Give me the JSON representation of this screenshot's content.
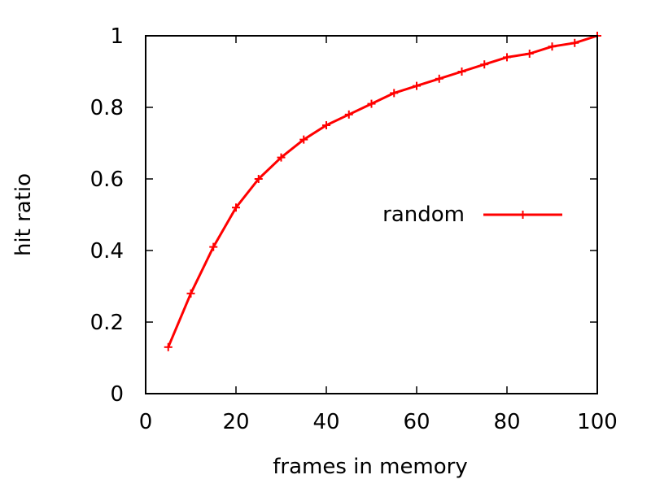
{
  "chart_data": {
    "type": "line",
    "title": "",
    "xlabel": "frames in memory",
    "ylabel": "hit ratio",
    "xlim": [
      0,
      100
    ],
    "ylim": [
      0,
      1
    ],
    "xticks": [
      "0",
      "20",
      "40",
      "60",
      "80",
      "100"
    ],
    "yticks": [
      "0",
      "0.2",
      "0.4",
      "0.6",
      "0.8",
      "1"
    ],
    "grid": false,
    "legend_position": "right",
    "series": [
      {
        "name": "random",
        "color": "#ff0000",
        "marker": "plus",
        "x": [
          5,
          10,
          15,
          20,
          25,
          30,
          35,
          40,
          45,
          50,
          55,
          60,
          65,
          70,
          75,
          80,
          85,
          90,
          95,
          100
        ],
        "y": [
          0.13,
          0.28,
          0.41,
          0.52,
          0.6,
          0.66,
          0.71,
          0.75,
          0.78,
          0.81,
          0.84,
          0.86,
          0.88,
          0.9,
          0.92,
          0.94,
          0.95,
          0.97,
          0.98,
          1.0
        ]
      }
    ]
  }
}
